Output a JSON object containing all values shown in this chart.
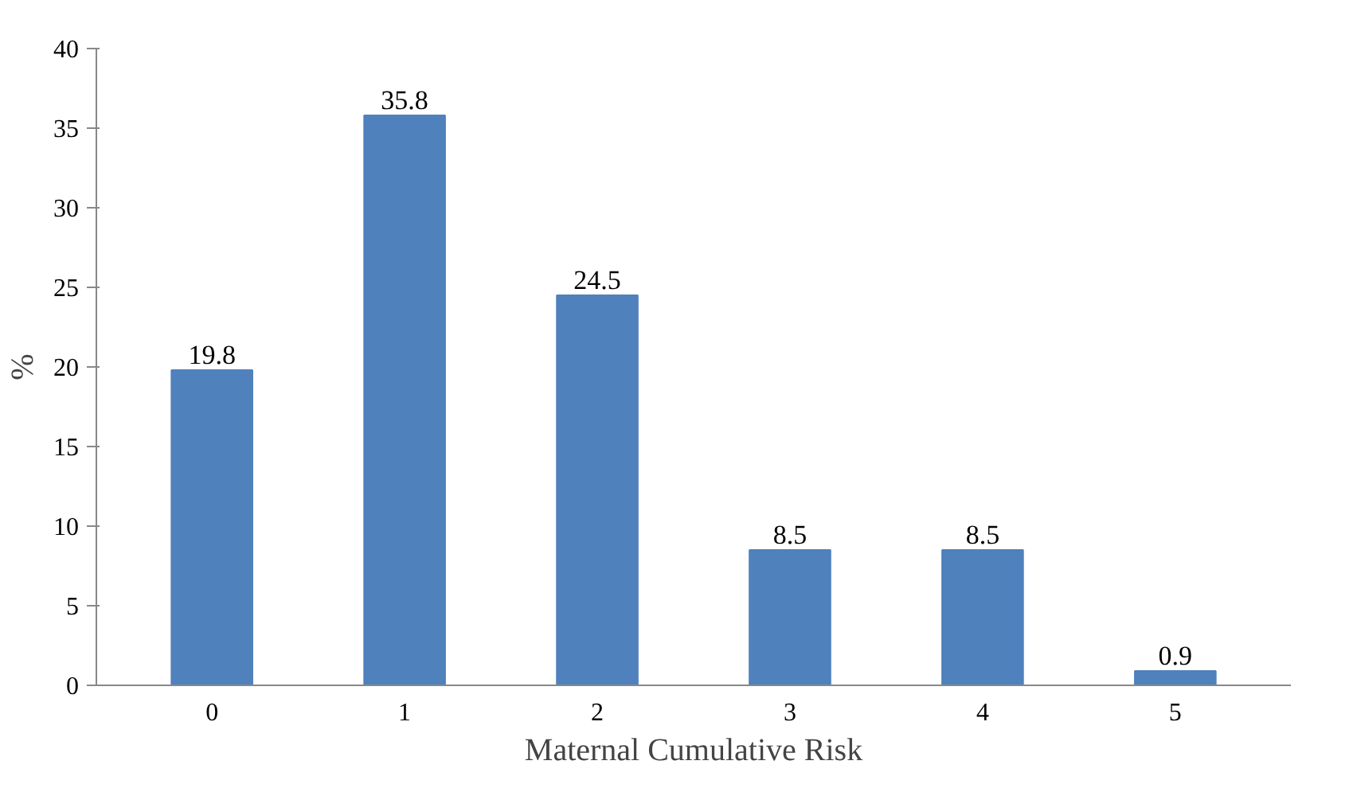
{
  "chart_data": {
    "type": "bar",
    "xlabel": "Maternal Cumulative Risk",
    "ylabel": "%",
    "categories": [
      "0",
      "1",
      "2",
      "3",
      "4",
      "5"
    ],
    "values": [
      19.8,
      35.8,
      24.5,
      8.5,
      8.5,
      0.9
    ],
    "color": "#4f81bd",
    "data_labels": true,
    "ylim": [
      0,
      40
    ],
    "yticks": [
      0,
      5,
      10,
      15,
      20,
      25,
      30,
      35,
      40
    ],
    "grid": false
  }
}
